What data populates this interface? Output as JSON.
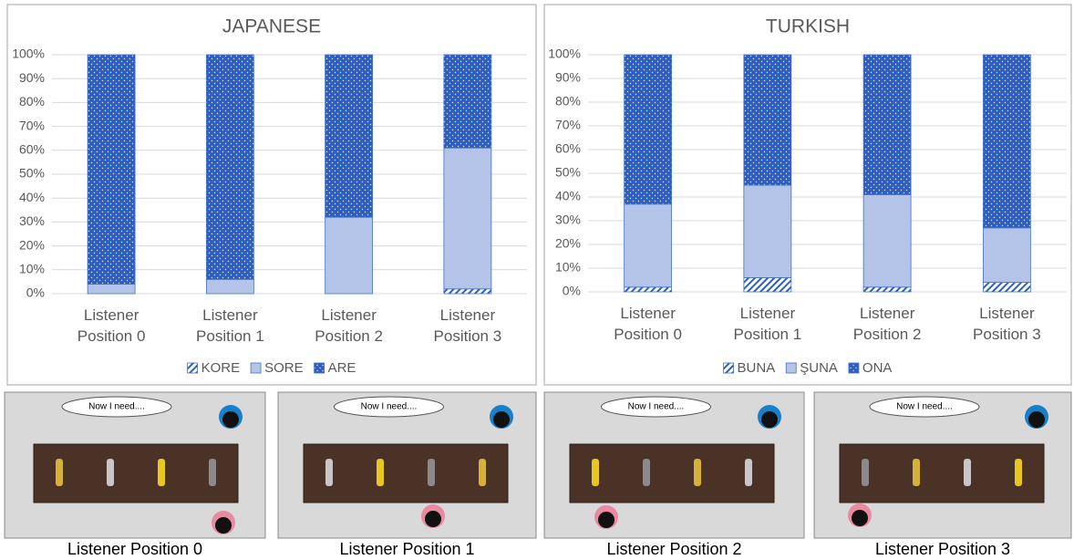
{
  "chart_data": [
    {
      "type": "stacked-bar",
      "title": "JAPANESE",
      "categories": [
        "Listener Position 0",
        "Listener Position 1",
        "Listener Position 2",
        "Listener Position 3"
      ],
      "series": [
        {
          "name": "KORE",
          "color": "#2e5fbf",
          "pattern": "hatch",
          "values": [
            0,
            0,
            0,
            2
          ]
        },
        {
          "name": "SORE",
          "color": "#b4c4e8",
          "pattern": "solid",
          "values": [
            4,
            6,
            32,
            59
          ]
        },
        {
          "name": "ARE",
          "color": "#2e5fbf",
          "pattern": "dots",
          "values": [
            96,
            94,
            68,
            39
          ]
        }
      ],
      "ylim": [
        0,
        100
      ],
      "yticks": [
        {
          "value": 0,
          "label": "0%"
        },
        {
          "value": 10,
          "label": "10%"
        },
        {
          "value": 20,
          "label": "20%"
        },
        {
          "value": 30,
          "label": "30%"
        },
        {
          "value": 40,
          "label": "40%"
        },
        {
          "value": 50,
          "label": "50%"
        },
        {
          "value": 60,
          "label": "60%"
        },
        {
          "value": 70,
          "label": "70%"
        },
        {
          "value": 80,
          "label": "80%"
        },
        {
          "value": 90,
          "label": "90%"
        },
        {
          "value": 100,
          "label": "100%"
        }
      ],
      "grid": true,
      "legend": "bottom"
    },
    {
      "type": "stacked-bar",
      "title": "TURKISH",
      "categories": [
        "Listener Position 0",
        "Listener Position 1",
        "Listener Position 2",
        "Listener Position 3"
      ],
      "series": [
        {
          "name": "BUNA",
          "color": "#2e5fbf",
          "pattern": "hatch",
          "values": [
            2,
            6,
            2,
            4
          ]
        },
        {
          "name": "ŞUNA",
          "color": "#b4c4e8",
          "pattern": "solid",
          "values": [
            35,
            39,
            39,
            23
          ]
        },
        {
          "name": "ONA",
          "color": "#2e5fbf",
          "pattern": "dots",
          "values": [
            63,
            55,
            59,
            73
          ]
        }
      ],
      "ylim": [
        0,
        100
      ],
      "yticks": [
        {
          "value": 0,
          "label": "0%"
        },
        {
          "value": 10,
          "label": "10%"
        },
        {
          "value": 20,
          "label": "20%"
        },
        {
          "value": 30,
          "label": "30%"
        },
        {
          "value": 40,
          "label": "40%"
        },
        {
          "value": 50,
          "label": "50%"
        },
        {
          "value": 60,
          "label": "60%"
        },
        {
          "value": 70,
          "label": "70%"
        },
        {
          "value": 80,
          "label": "80%"
        },
        {
          "value": 90,
          "label": "90%"
        },
        {
          "value": 100,
          "label": "100%"
        }
      ],
      "grid": true,
      "legend": "bottom"
    }
  ],
  "panels": [
    {
      "bubble": "Now I need....",
      "caption": "Listener Position 0"
    },
    {
      "bubble": "Now I need....",
      "caption": "Listener Position 1"
    },
    {
      "bubble": "Now I need....",
      "caption": "Listener Position 2"
    },
    {
      "bubble": "Now I need....",
      "caption": "Listener Position 3"
    }
  ]
}
